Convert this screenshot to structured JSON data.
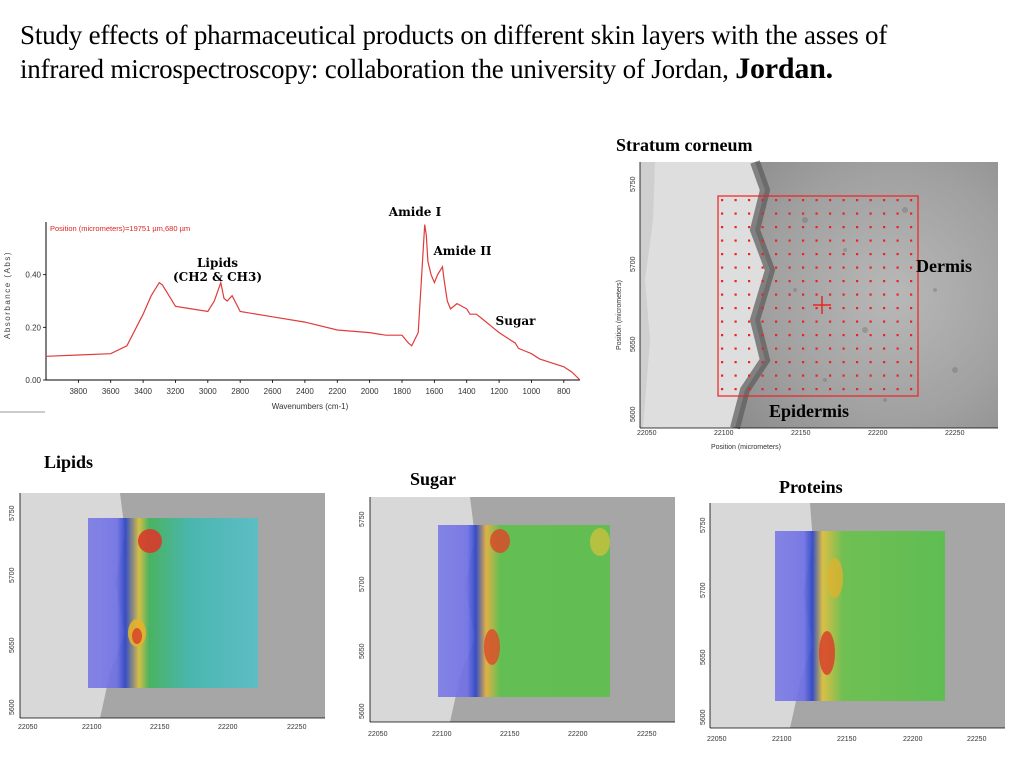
{
  "slide": {
    "title_main": "Study effects of pharmaceutical products on different skin layers with the asses of infrared microspectroscopy: collaboration the university of Jordan, ",
    "title_bold": "Jordan."
  },
  "labels": {
    "stratum": "Stratum corneum",
    "dermis": "Dermis",
    "epidermis": "Epidermis",
    "lipids": "Lipids",
    "sugar": "Sugar",
    "proteins": "Proteins"
  },
  "spectrum": {
    "position_note": "Position (micrometers)=19751 µm,680 µm",
    "ylabel": "Absorbance (Abs)",
    "xlabel": "Wavenumbers (cm-1)",
    "ann_amide1": "Amide I",
    "ann_amide2": "Amide II",
    "ann_lipids_line1": "Lipids",
    "ann_lipids_line2": "(CH2 & CH3)",
    "ann_sugar": "Sugar"
  },
  "micrograph_axes": {
    "xlabel": "Position (micrometers)",
    "ylabel": "Position (micrometers)",
    "xticks": [
      "22050",
      "22100",
      "22150",
      "22200",
      "22250"
    ],
    "yticks": [
      "5750",
      "5700",
      "5650",
      "5600"
    ]
  },
  "chart_data": {
    "type": "line",
    "title": "",
    "xlabel": "Wavenumbers (cm-1)",
    "ylabel": "Absorbance (Abs)",
    "xlim": [
      4000,
      700
    ],
    "ylim": [
      0,
      0.6
    ],
    "x_ticks": [
      3800,
      3600,
      3400,
      3200,
      3000,
      2800,
      2600,
      2400,
      2200,
      2000,
      1800,
      1600,
      1400,
      1200,
      1000,
      800
    ],
    "y_ticks": [
      0.0,
      0.2,
      0.4
    ],
    "series": [
      {
        "x": [
          4000,
          3800,
          3600,
          3500,
          3400,
          3350,
          3300,
          3280,
          3250,
          3200,
          3100,
          3000,
          2960,
          2920,
          2900,
          2880,
          2850,
          2800,
          2600,
          2400,
          2200,
          2000,
          1900,
          1800,
          1760,
          1740,
          1700,
          1680,
          1660,
          1650,
          1640,
          1620,
          1600,
          1580,
          1550,
          1540,
          1520,
          1500,
          1460,
          1400,
          1380,
          1340,
          1300,
          1240,
          1200,
          1150,
          1100,
          1080,
          1040,
          1000,
          950,
          900,
          850,
          800,
          750,
          700
        ],
        "y": [
          0.09,
          0.095,
          0.1,
          0.13,
          0.25,
          0.32,
          0.37,
          0.36,
          0.33,
          0.28,
          0.27,
          0.26,
          0.3,
          0.37,
          0.31,
          0.3,
          0.32,
          0.26,
          0.24,
          0.22,
          0.19,
          0.18,
          0.17,
          0.17,
          0.14,
          0.13,
          0.18,
          0.38,
          0.59,
          0.55,
          0.45,
          0.4,
          0.37,
          0.4,
          0.43,
          0.38,
          0.3,
          0.27,
          0.29,
          0.27,
          0.25,
          0.25,
          0.23,
          0.2,
          0.18,
          0.16,
          0.14,
          0.12,
          0.11,
          0.1,
          0.08,
          0.07,
          0.06,
          0.05,
          0.03,
          0.0
        ]
      }
    ]
  }
}
